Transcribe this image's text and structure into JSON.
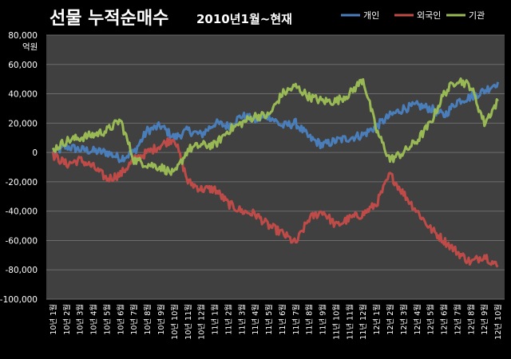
{
  "chart_data": {
    "type": "line",
    "title": "선물 누적순매수",
    "subtitle": "2010년1월~현재",
    "ylabel": "억원",
    "ylim": [
      -100000,
      80000
    ],
    "yticks": [
      80000,
      60000,
      40000,
      20000,
      0,
      -20000,
      -40000,
      -60000,
      -80000,
      -100000
    ],
    "ytick_labels": [
      "80,000",
      "60,000",
      "40,000",
      "20,000",
      "0",
      "-20,000",
      "-40,000",
      "-60,000",
      "-80,000",
      "-100,000"
    ],
    "grid": true,
    "legend_position": "top-right",
    "categories": [
      "10년 1월",
      "10년 2월",
      "10년 3월",
      "10년 4월",
      "10년 5월",
      "10년 6월",
      "10년 7월",
      "10년 8월",
      "10년 9월",
      "10년 10월",
      "10년 11월",
      "10년 12월",
      "11년 1월",
      "11년 2월",
      "11년 3월",
      "11년 4월",
      "11년 5월",
      "11년 6월",
      "11년 7월",
      "11년 8월",
      "11년 9월",
      "11년 10월",
      "11년 11월",
      "11년 12월",
      "12년 1월",
      "12년 2월",
      "12년 3월",
      "12년 4월",
      "12년 5월",
      "12년 6월",
      "12년 7월",
      "12년 8월",
      "12년 9월",
      "12년 10월"
    ],
    "series": [
      {
        "name": "개인",
        "color": "#4a7ebb",
        "values": [
          0,
          4000,
          2000,
          1000,
          0,
          -4000,
          0,
          15000,
          18000,
          10000,
          15000,
          12000,
          20000,
          18000,
          25000,
          22000,
          25000,
          18000,
          20000,
          10000,
          5000,
          8000,
          10000,
          12000,
          18000,
          25000,
          30000,
          32000,
          30000,
          25000,
          35000,
          38000,
          42000,
          48000
        ]
      },
      {
        "name": "외국인",
        "color": "#be4b48",
        "values": [
          -2000,
          -8000,
          -5000,
          -10000,
          -18000,
          -15000,
          -5000,
          0,
          5000,
          10000,
          -20000,
          -25000,
          -25000,
          -35000,
          -40000,
          -42000,
          -50000,
          -55000,
          -62000,
          -45000,
          -40000,
          -50000,
          -45000,
          -42000,
          -35000,
          -15000,
          -28000,
          -40000,
          -52000,
          -60000,
          -68000,
          -75000,
          -70000,
          -78000
        ]
      },
      {
        "name": "기관",
        "color": "#98b954",
        "values": [
          2000,
          8000,
          10000,
          12000,
          15000,
          22000,
          -5000,
          -8000,
          -10000,
          -15000,
          2000,
          5000,
          5000,
          15000,
          20000,
          25000,
          25000,
          40000,
          45000,
          38000,
          35000,
          35000,
          40000,
          50000,
          15000,
          -5000,
          0,
          8000,
          20000,
          40000,
          50000,
          45000,
          20000,
          35000
        ]
      }
    ]
  }
}
